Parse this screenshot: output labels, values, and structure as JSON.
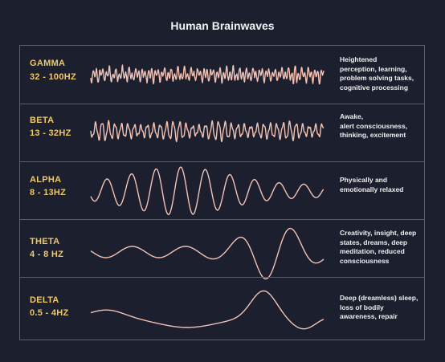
{
  "title": "Human Brainwaves",
  "colors": {
    "background": "#1b1f2e",
    "label": "#f1c86a",
    "wave": "#f3c2b4",
    "border": "#5b6070"
  },
  "bands": [
    {
      "name": "GAMMA",
      "range": "32 - 100HZ",
      "description_lines": [
        "Heightened",
        "perception, learning,",
        "problem solving tasks,",
        "cognitive processing"
      ]
    },
    {
      "name": "BETA",
      "range": "13 - 32HZ",
      "description_lines": [
        "Awake,",
        "alert consciousness,",
        "thinking, excitement"
      ]
    },
    {
      "name": "ALPHA",
      "range": "8 - 13HZ",
      "description_lines": [
        "Physically and",
        "emotionally relaxed"
      ]
    },
    {
      "name": "THETA",
      "range": "4 - 8 HZ",
      "description_lines": [
        "Creativity, insight, deep",
        "states, dreams, deep",
        "meditation, reduced",
        "consciousness"
      ]
    },
    {
      "name": "DELTA",
      "range": "0.5 - 4HZ",
      "description_lines": [
        "Deep (dreamless) sleep,",
        "loss of bodily",
        "awareness, repair"
      ]
    }
  ]
}
